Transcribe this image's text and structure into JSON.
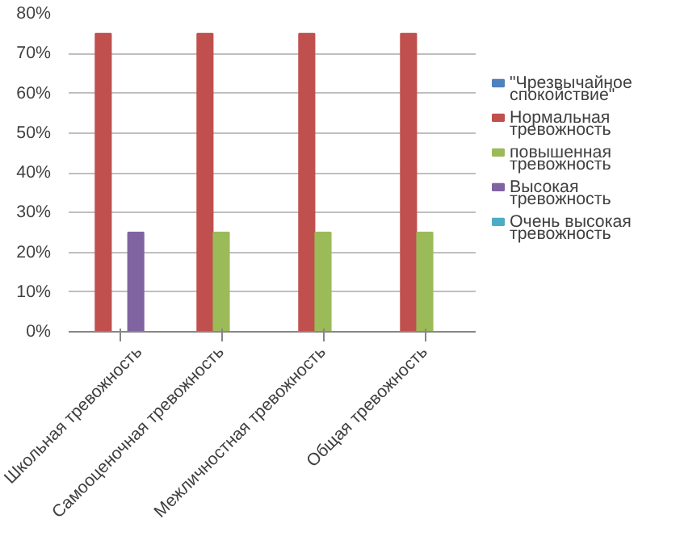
{
  "chart_data": {
    "type": "bar",
    "categories": [
      "Школьная тревожность",
      "Самооценочная тревожность",
      "Межличностная тревожность",
      "Общая тревожность"
    ],
    "series": [
      {
        "name": "\"Чрезвычайное спокойствие\"",
        "color": "#4f81bd",
        "values": [
          0,
          0,
          0,
          0
        ]
      },
      {
        "name": "Нормальная тревожность",
        "color": "#c0504d",
        "values": [
          75,
          75,
          75,
          75
        ]
      },
      {
        "name": "повышенная тревожность",
        "color": "#9bbb59",
        "values": [
          0,
          25,
          25,
          25
        ]
      },
      {
        "name": "Высокая тревожность",
        "color": "#8064a2",
        "values": [
          25,
          0,
          0,
          0
        ]
      },
      {
        "name": "Очень высокая тревожность",
        "color": "#4bacc6",
        "values": [
          0,
          0,
          0,
          0
        ]
      }
    ],
    "ylim": [
      0,
      80
    ],
    "yticks": [
      {
        "value": 0,
        "label": "0%"
      },
      {
        "value": 10,
        "label": "10%"
      },
      {
        "value": 20,
        "label": "20%"
      },
      {
        "value": 30,
        "label": "30%"
      },
      {
        "value": 40,
        "label": "40%"
      },
      {
        "value": 50,
        "label": "50%"
      },
      {
        "value": 60,
        "label": "60%"
      },
      {
        "value": 70,
        "label": "70%"
      },
      {
        "value": 80,
        "label": "80%"
      }
    ],
    "grid": "y",
    "legend": "right"
  }
}
